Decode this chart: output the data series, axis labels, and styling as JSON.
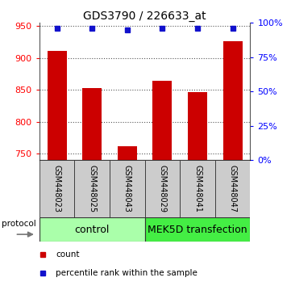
{
  "title": "GDS3790 / 226633_at",
  "categories": [
    "GSM448023",
    "GSM448025",
    "GSM448043",
    "GSM448029",
    "GSM448041",
    "GSM448047"
  ],
  "bar_values": [
    911,
    853,
    762,
    864,
    847,
    926
  ],
  "percentile_values": [
    96,
    96,
    95,
    96,
    96,
    96
  ],
  "ylim_left": [
    740,
    955
  ],
  "ylim_right": [
    0,
    100
  ],
  "yticks_left": [
    750,
    800,
    850,
    900,
    950
  ],
  "yticks_right": [
    0,
    25,
    50,
    75,
    100
  ],
  "bar_color": "#cc0000",
  "dot_color": "#1111cc",
  "bar_width": 0.55,
  "group1_label": "control",
  "group2_label": "MEK5D transfection",
  "group1_color": "#aaffaa",
  "group2_color": "#44ee44",
  "group_box_color": "#cccccc",
  "protocol_label": "protocol",
  "legend_count_label": "count",
  "legend_percentile_label": "percentile rank within the sample",
  "background_color": "#ffffff",
  "title_fontsize": 10,
  "label_fontsize": 7,
  "group_fontsize": 9,
  "legend_fontsize": 7.5
}
